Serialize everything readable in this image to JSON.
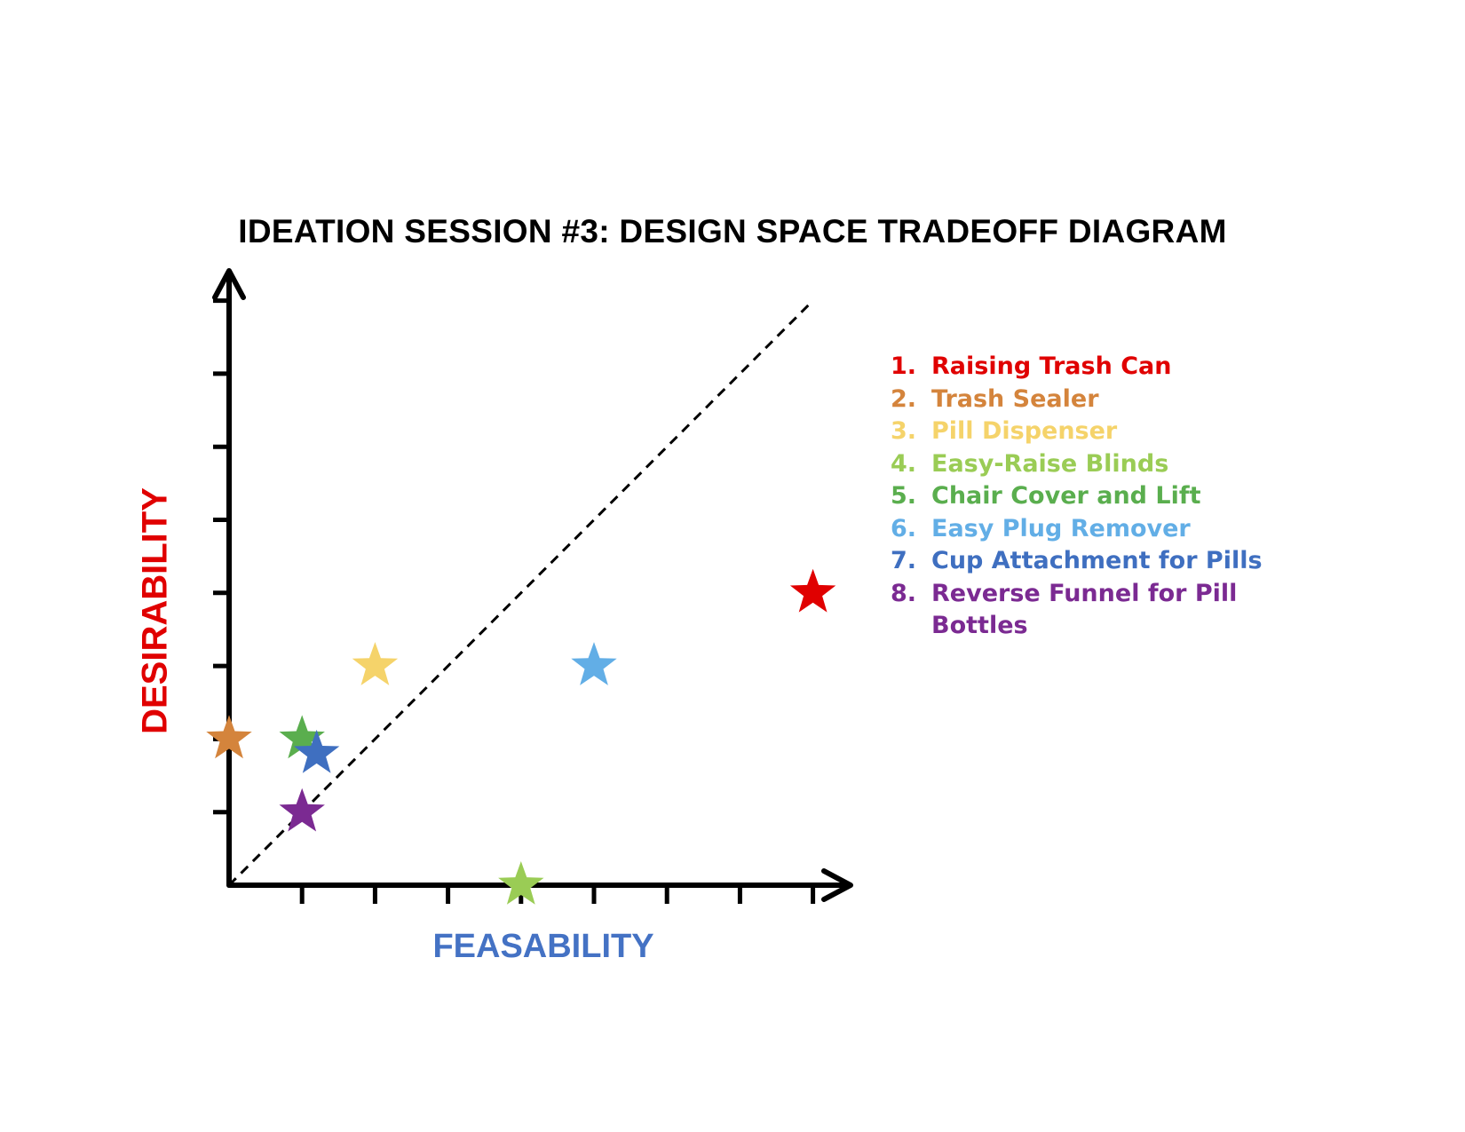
{
  "chart_data": {
    "type": "scatter",
    "title": "IDEATION SESSION #3: DESIGN SPACE TRADEOFF DIAGRAM",
    "xlabel": "FEASABILITY",
    "ylabel": "DESIRABILITY",
    "xlim": [
      0,
      8
    ],
    "ylim": [
      0,
      8
    ],
    "x_ticks": [
      1,
      2,
      3,
      4,
      5,
      6,
      7,
      8
    ],
    "y_ticks": [
      1,
      2,
      3,
      4,
      5,
      6,
      7,
      8
    ],
    "grid": false,
    "marker": "star",
    "reference_line": {
      "style": "dashed",
      "from": [
        0,
        0
      ],
      "to": [
        8,
        8
      ]
    },
    "legend_placement": "right",
    "points": [
      {
        "number": "1.",
        "name": "Raising Trash Can",
        "x": 8,
        "y": 4,
        "color": "#e00000"
      },
      {
        "number": "2.",
        "name": "Trash Sealer",
        "x": 0,
        "y": 2,
        "color": "#d4843c"
      },
      {
        "number": "3.",
        "name": "Pill Dispenser",
        "x": 2,
        "y": 3,
        "color": "#f5d36a"
      },
      {
        "number": "4.",
        "name": "Easy-Raise Blinds",
        "x": 4,
        "y": 0,
        "color": "#9acc55"
      },
      {
        "number": "5.",
        "name": "Chair Cover and Lift",
        "x": 1,
        "y": 2,
        "color": "#5aae4e"
      },
      {
        "number": "6.",
        "name": "Easy Plug Remover",
        "x": 5,
        "y": 3,
        "color": "#62aee6"
      },
      {
        "number": "7.",
        "name": "Cup Attachment for Pills",
        "x": 1.2,
        "y": 1.8,
        "color": "#3f6fc0"
      },
      {
        "number": "8.",
        "name": "Reverse Funnel for Pill Bottles",
        "x": 1,
        "y": 1,
        "color": "#7b2a92"
      }
    ],
    "colors": {
      "title": "#000000",
      "xlabel": "#4472c4",
      "ylabel": "#e00000",
      "axes": "#000000"
    }
  }
}
